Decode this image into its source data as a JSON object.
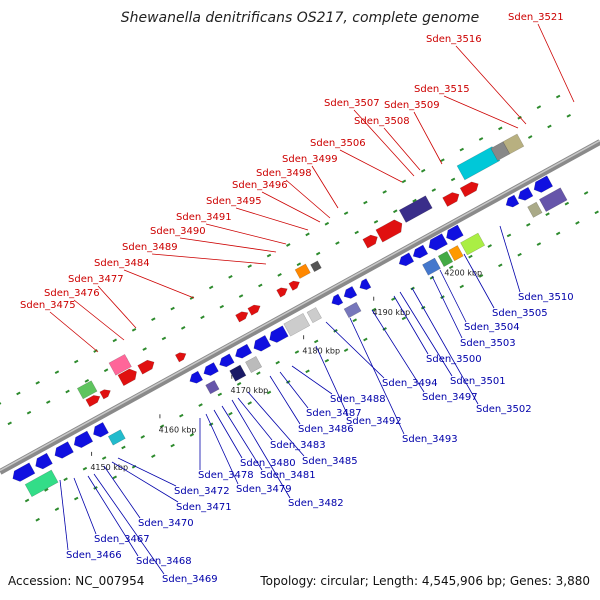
{
  "title": "Shewanella denitrificans OS217, complete genome",
  "footer": {
    "accession": "Accession: NC_007954",
    "summary": "Topology: circular; Length: 4,545,906 bp; Genes: 3,880"
  },
  "colors": {
    "top_label": "#cc0000",
    "bottom_label": "#0000aa",
    "backbone": "#8a8a8a",
    "tick_mark": "#2e8b2e"
  },
  "scale_labels": [
    {
      "kbp": 4150,
      "text": "4150 kbp"
    },
    {
      "kbp": 4160,
      "text": "4160 kbp"
    },
    {
      "kbp": 4170,
      "text": "4170 kbp"
    },
    {
      "kbp": 4180,
      "text": "4180 kbp"
    },
    {
      "kbp": 4190,
      "text": "4190 kbp"
    },
    {
      "kbp": 4200,
      "text": "4200 kbp"
    }
  ],
  "top_genes": [
    "Sden_3475",
    "Sden_3476",
    "Sden_3477",
    "Sden_3484",
    "Sden_3489",
    "Sden_3490",
    "Sden_3491",
    "Sden_3495",
    "Sden_3496",
    "Sden_3498",
    "Sden_3499",
    "Sden_3506",
    "Sden_3507",
    "Sden_3508",
    "Sden_3509",
    "Sden_3515",
    "Sden_3516",
    "Sden_3521"
  ],
  "bottom_genes": [
    "Sden_3466",
    "Sden_3467",
    "Sden_3468",
    "Sden_3469",
    "Sden_3470",
    "Sden_3471",
    "Sden_3472",
    "Sden_3478",
    "Sden_3479",
    "Sden_3480",
    "Sden_3481",
    "Sden_3482",
    "Sden_3483",
    "Sden_3485",
    "Sden_3486",
    "Sden_3487",
    "Sden_3488",
    "Sden_3492",
    "Sden_3493",
    "Sden_3494",
    "Sden_3497",
    "Sden_3500",
    "Sden_3501",
    "Sden_3502",
    "Sden_3503",
    "Sden_3504",
    "Sden_3505",
    "Sden_3510"
  ]
}
